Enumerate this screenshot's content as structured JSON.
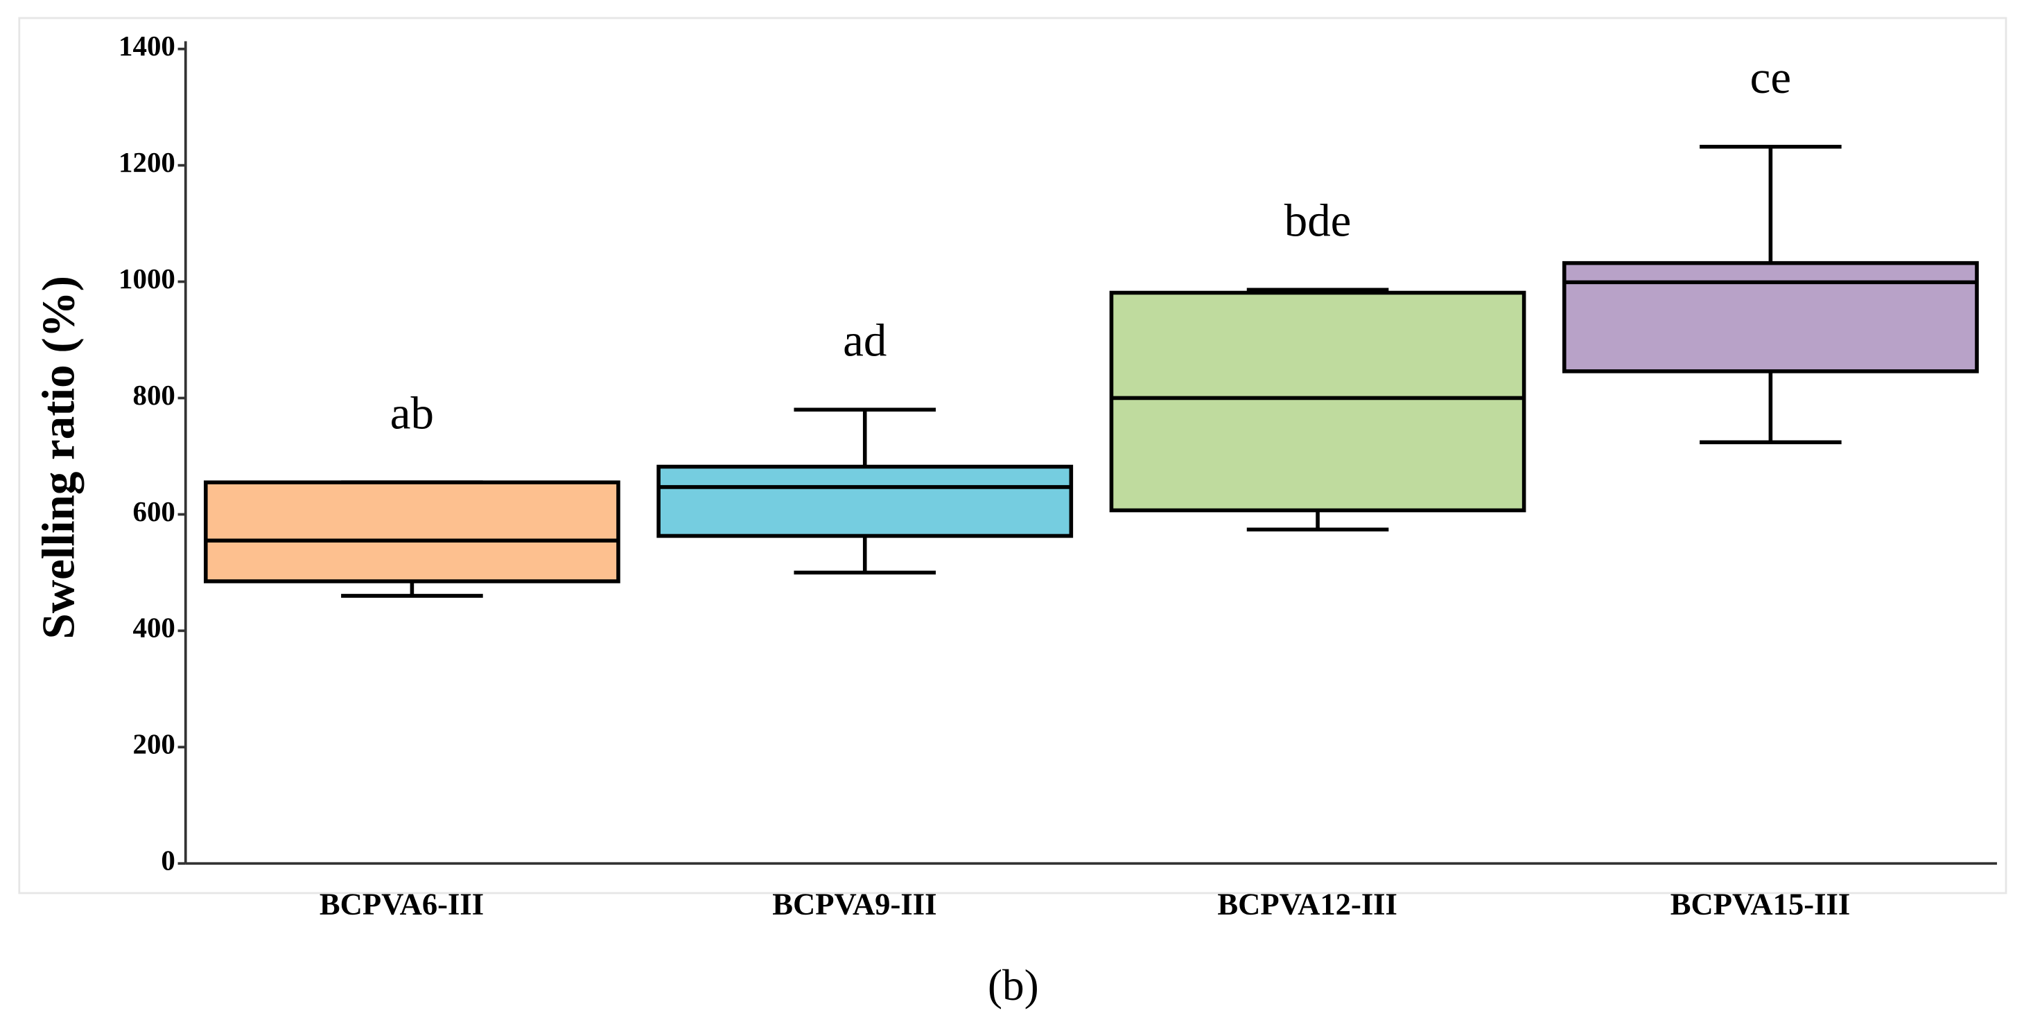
{
  "chart_data": {
    "type": "box",
    "ylabel": "Swelling ratio (%)",
    "caption": "(b)",
    "categories": [
      "BCPVA6-III",
      "BCPVA9-III",
      "BCPVA12-III",
      "BCPVA15-III"
    ],
    "boxes": [
      {
        "min": 460,
        "q1": 485,
        "median": 555,
        "q3": 655,
        "max": 655
      },
      {
        "min": 500,
        "q1": 563,
        "median": 647,
        "q3": 682,
        "max": 780
      },
      {
        "min": 574,
        "q1": 607,
        "median": 800,
        "q3": 981,
        "max": 986
      },
      {
        "min": 724,
        "q1": 846,
        "median": 999,
        "q3": 1032,
        "max": 1232
      }
    ],
    "colors": [
      "#fdc08f",
      "#75cde0",
      "#bfdb9e",
      "#b8a2c8"
    ],
    "annotations": [
      "ab",
      "ad",
      "bde",
      "ce"
    ],
    "ylim": [
      0,
      1400
    ],
    "yticks": [
      0,
      200,
      400,
      600,
      800,
      1000,
      1200,
      1400
    ]
  }
}
